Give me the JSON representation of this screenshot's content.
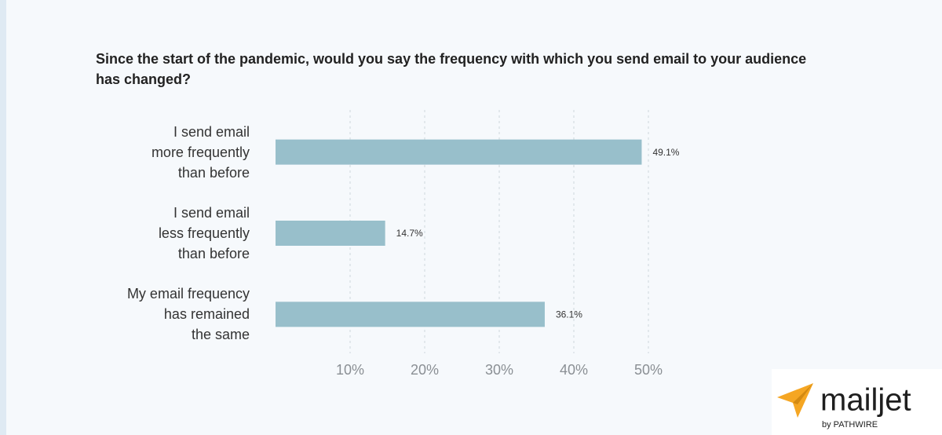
{
  "chart_data": {
    "type": "hbar",
    "title": "Since the start of the pandemic, would you say the frequency with which you send email to your audience has changed?",
    "categories": [
      "I send email\nmore frequently\nthan before",
      "I send email\nless frequently\nthan before",
      "My email frequency\nhas remained\nthe same"
    ],
    "values": [
      49.1,
      14.7,
      36.1
    ],
    "value_labels": [
      "49.1%",
      "14.7%",
      "36.1%"
    ],
    "color": "#98bfcb",
    "xlim": [
      0,
      50
    ],
    "xticks": [
      {
        "value": 10,
        "label": "10%"
      },
      {
        "value": 20,
        "label": "20%"
      },
      {
        "value": 30,
        "label": "30%"
      },
      {
        "value": 40,
        "label": "40%"
      },
      {
        "value": 50,
        "label": "50%"
      }
    ],
    "grid": true
  },
  "brand": {
    "name": "mailjet",
    "byline": "by PATHWIRE"
  }
}
